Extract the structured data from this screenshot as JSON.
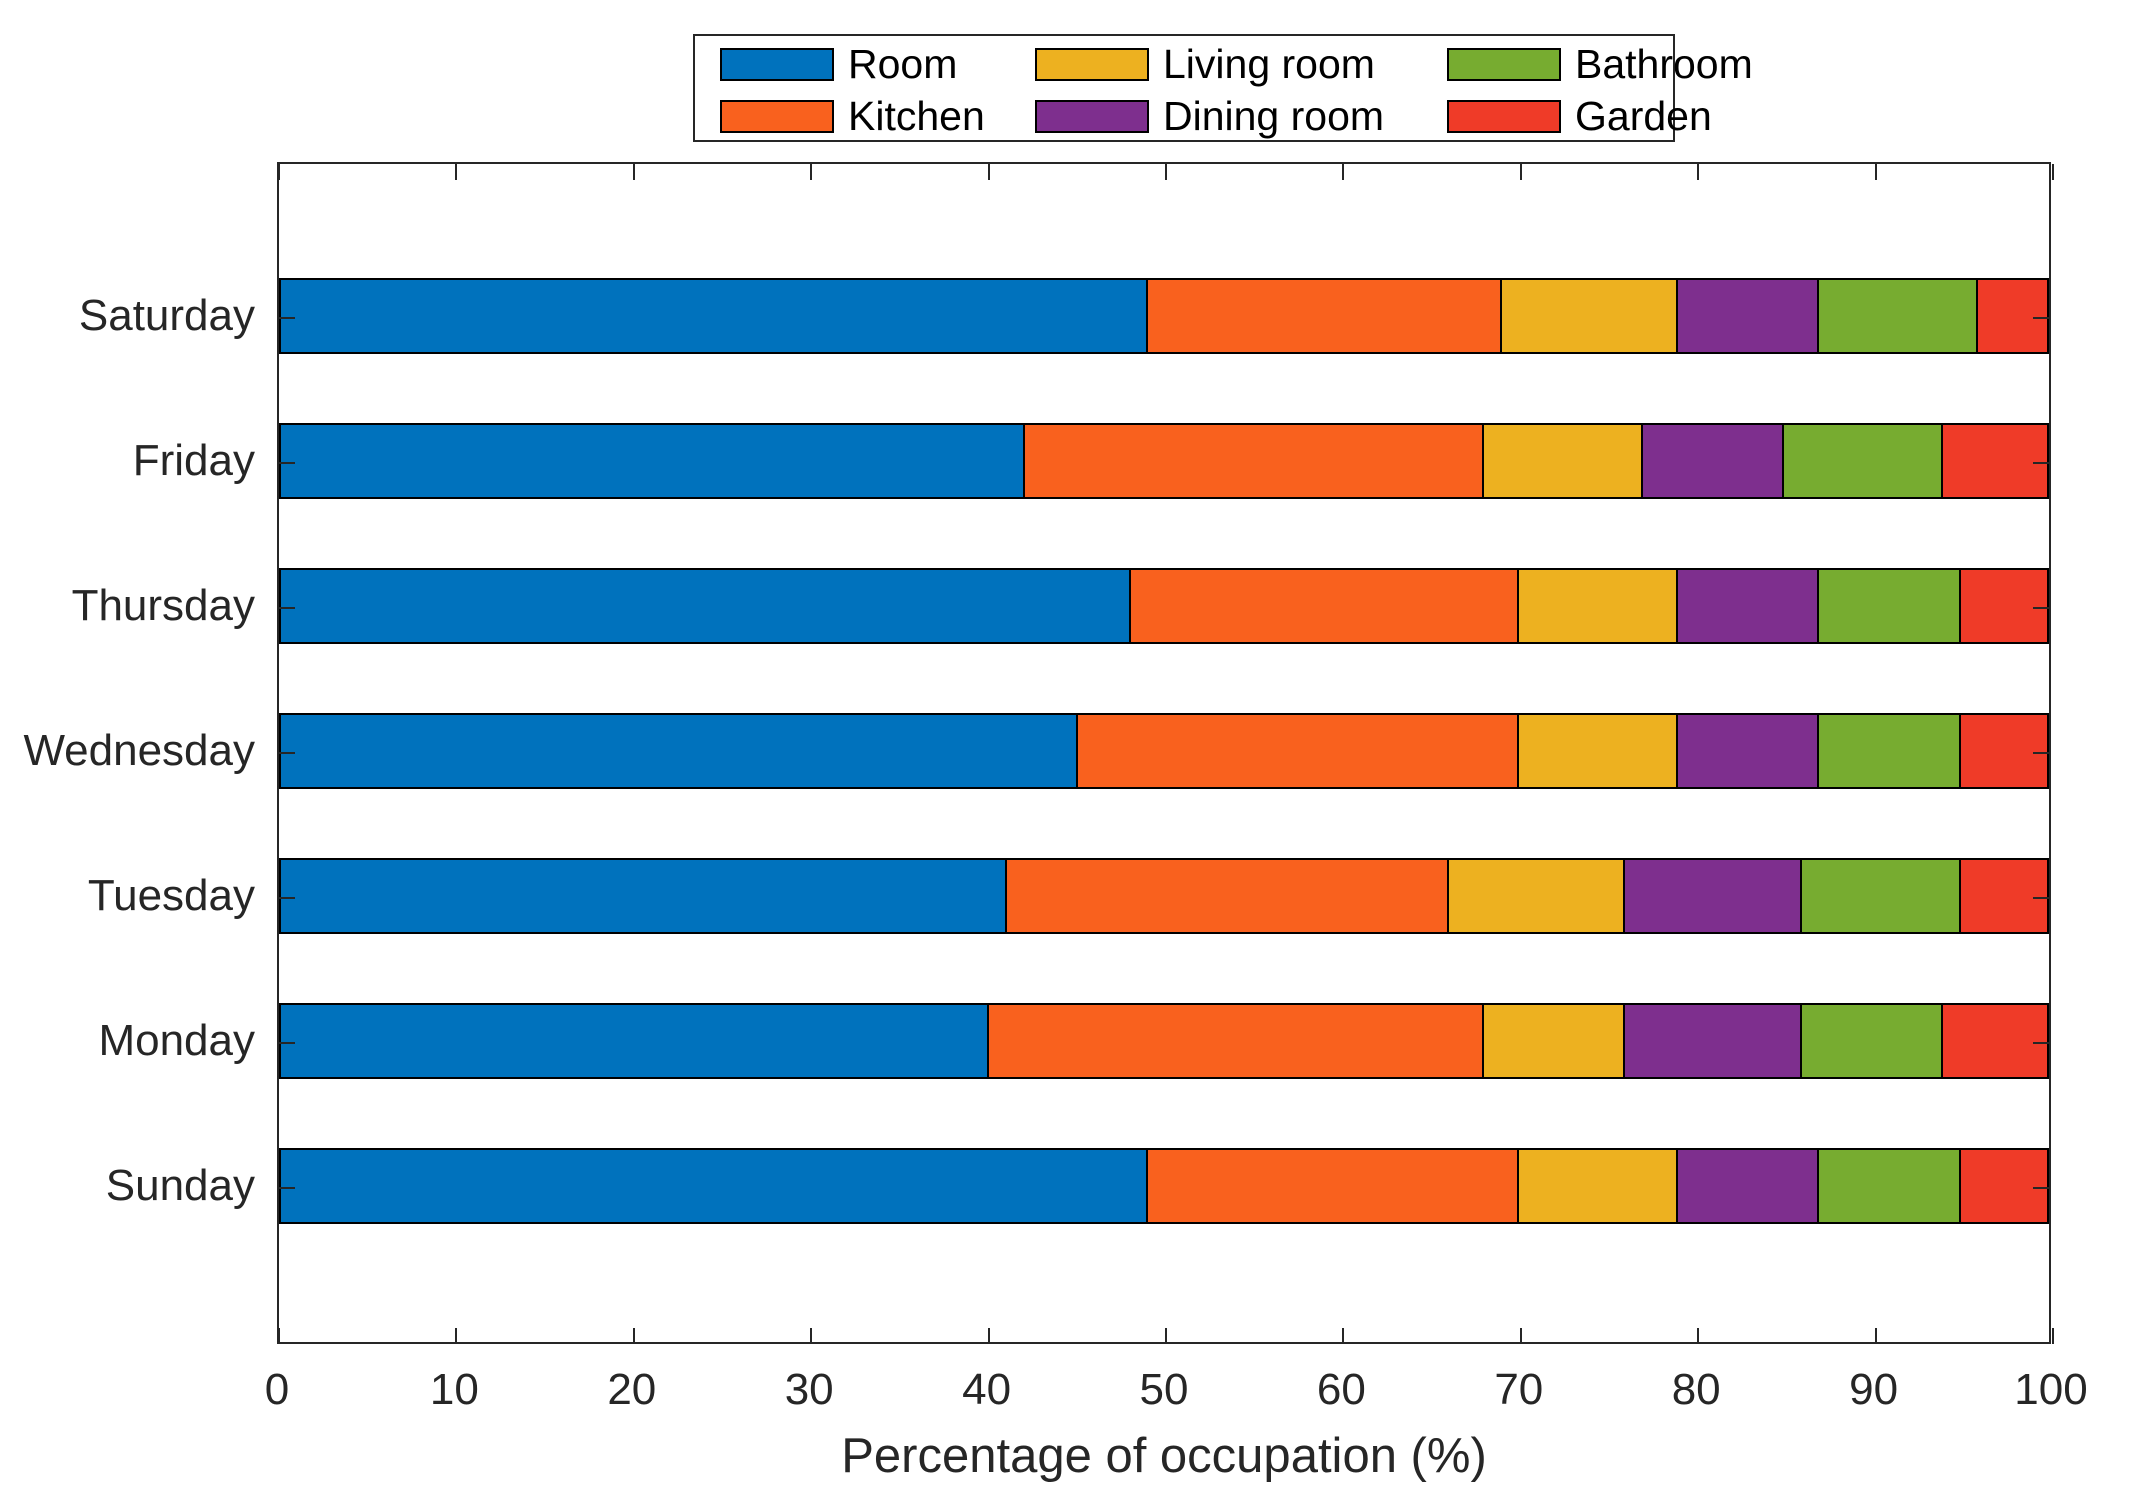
{
  "chart_data": {
    "type": "bar",
    "orientation": "horizontal",
    "stacked": true,
    "title": "",
    "xlabel": "Percentage of occupation (%)",
    "ylabel": "",
    "xlim": [
      0,
      100
    ],
    "xticks": [
      0,
      10,
      20,
      30,
      40,
      50,
      60,
      70,
      80,
      90,
      100
    ],
    "grid": false,
    "legend_position": "top",
    "legend_columns": 3,
    "legend_fill_order": "column-major",
    "axis_color": "#262626",
    "bar_edge_color": "#000000",
    "categories_top_to_bottom": [
      "Saturday",
      "Friday",
      "Thursday",
      "Wednesday",
      "Tuesday",
      "Monday",
      "Sunday"
    ],
    "series": [
      {
        "name": "Room",
        "color": "#0072BD",
        "values": [
          49,
          42,
          48,
          45,
          41,
          40,
          49
        ]
      },
      {
        "name": "Kitchen",
        "color": "#F9611E",
        "values": [
          20,
          26,
          22,
          25,
          25,
          28,
          21
        ]
      },
      {
        "name": "Living room",
        "color": "#EDB120",
        "values": [
          10,
          9,
          9,
          9,
          10,
          8,
          9
        ]
      },
      {
        "name": "Dining room",
        "color": "#7E2F8E",
        "values": [
          8,
          8,
          8,
          8,
          10,
          10,
          8
        ]
      },
      {
        "name": "Bathroom",
        "color": "#77AC30",
        "values": [
          9,
          9,
          8,
          8,
          9,
          8,
          8
        ]
      },
      {
        "name": "Garden",
        "color": "#EF3B28",
        "values": [
          4,
          6,
          5,
          5,
          5,
          6,
          5
        ]
      }
    ]
  }
}
